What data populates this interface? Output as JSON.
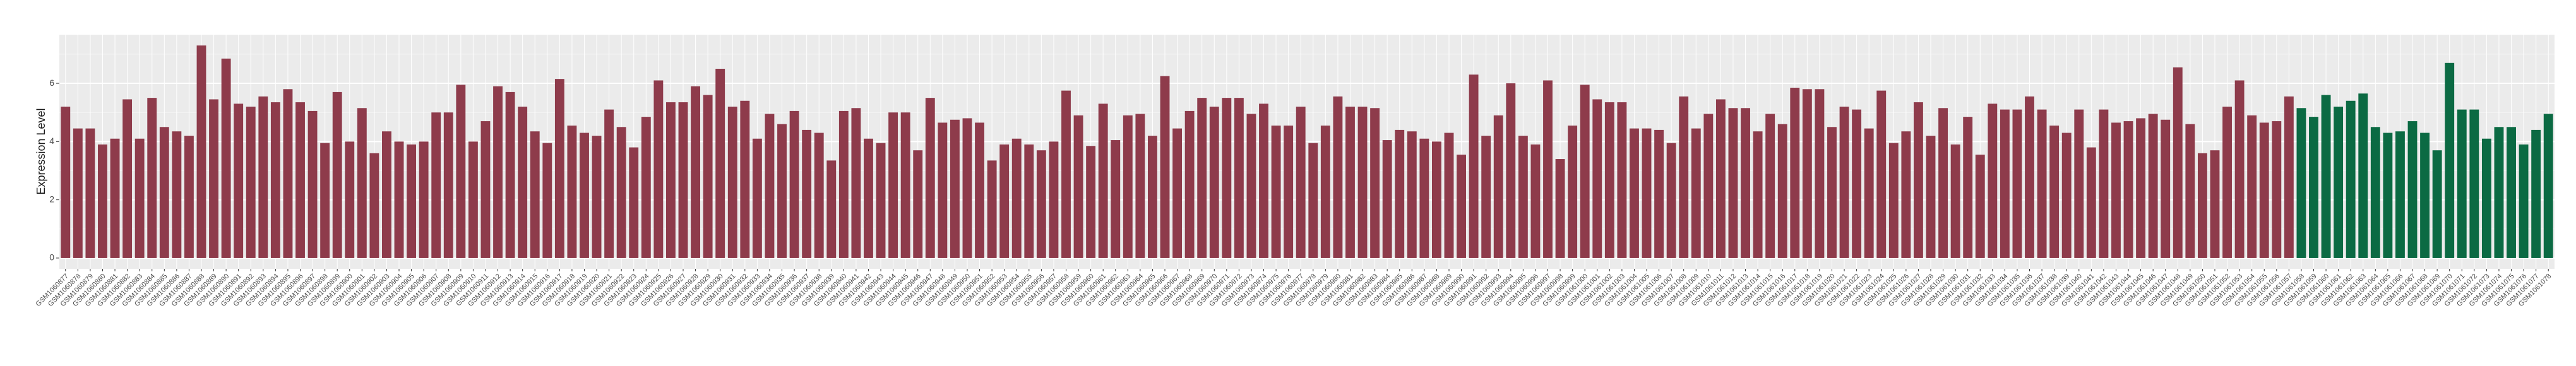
{
  "chart_data": {
    "type": "bar",
    "y_label": "Expression Level",
    "categories": [
      "GSM1060877",
      "GSM1060878",
      "GSM1060879",
      "GSM1060880",
      "GSM1060881",
      "GSM1060882",
      "GSM1060883",
      "GSM1060884",
      "GSM1060885",
      "GSM1060886",
      "GSM1060887",
      "GSM1060888",
      "GSM1060889",
      "GSM1060890",
      "GSM1060891",
      "GSM1060892",
      "GSM1060893",
      "GSM1060894",
      "GSM1060895",
      "GSM1060896",
      "GSM1060897",
      "GSM1060898",
      "GSM1060899",
      "GSM1060900",
      "GSM1060901",
      "GSM1060902",
      "GSM1060903",
      "GSM1060904",
      "GSM1060905",
      "GSM1060906",
      "GSM1060907",
      "GSM1060908",
      "GSM1060909",
      "GSM1060910",
      "GSM1060911",
      "GSM1060912",
      "GSM1060913",
      "GSM1060914",
      "GSM1060915",
      "GSM1060916",
      "GSM1060917",
      "GSM1060918",
      "GSM1060919",
      "GSM1060920",
      "GSM1060921",
      "GSM1060922",
      "GSM1060923",
      "GSM1060924",
      "GSM1060925",
      "GSM1060926",
      "GSM1060927",
      "GSM1060928",
      "GSM1060929",
      "GSM1060930",
      "GSM1060931",
      "GSM1060932",
      "GSM1060933",
      "GSM1060934",
      "GSM1060935",
      "GSM1060936",
      "GSM1060937",
      "GSM1060938",
      "GSM1060939",
      "GSM1060940",
      "GSM1060941",
      "GSM1060942",
      "GSM1060943",
      "GSM1060944",
      "GSM1060945",
      "GSM1060946",
      "GSM1060947",
      "GSM1060948",
      "GSM1060949",
      "GSM1060950",
      "GSM1060951",
      "GSM1060952",
      "GSM1060953",
      "GSM1060954",
      "GSM1060955",
      "GSM1060956",
      "GSM1060957",
      "GSM1060958",
      "GSM1060959",
      "GSM1060960",
      "GSM1060961",
      "GSM1060962",
      "GSM1060963",
      "GSM1060964",
      "GSM1060965",
      "GSM1060966",
      "GSM1060967",
      "GSM1060968",
      "GSM1060969",
      "GSM1060970",
      "GSM1060971",
      "GSM1060972",
      "GSM1060973",
      "GSM1060974",
      "GSM1060975",
      "GSM1060976",
      "GSM1060977",
      "GSM1060978",
      "GSM1060979",
      "GSM1060980",
      "GSM1060981",
      "GSM1060982",
      "GSM1060983",
      "GSM1060984",
      "GSM1060985",
      "GSM1060986",
      "GSM1060987",
      "GSM1060988",
      "GSM1060989",
      "GSM1060990",
      "GSM1060991",
      "GSM1060992",
      "GSM1060993",
      "GSM1060994",
      "GSM1060995",
      "GSM1060996",
      "GSM1060997",
      "GSM1060998",
      "GSM1060999",
      "GSM1061000",
      "GSM1061001",
      "GSM1061002",
      "GSM1061003",
      "GSM1061004",
      "GSM1061005",
      "GSM1061006",
      "GSM1061007",
      "GSM1061008",
      "GSM1061009",
      "GSM1061010",
      "GSM1061011",
      "GSM1061012",
      "GSM1061013",
      "GSM1061014",
      "GSM1061015",
      "GSM1061016",
      "GSM1061017",
      "GSM1061018",
      "GSM1061019",
      "GSM1061020",
      "GSM1061021",
      "GSM1061022",
      "GSM1061023",
      "GSM1061024",
      "GSM1061025",
      "GSM1061026",
      "GSM1061027",
      "GSM1061028",
      "GSM1061029",
      "GSM1061030",
      "GSM1061031",
      "GSM1061032",
      "GSM1061033",
      "GSM1061034",
      "GSM1061035",
      "GSM1061036",
      "GSM1061037",
      "GSM1061038",
      "GSM1061039",
      "GSM1061040",
      "GSM1061041",
      "GSM1061042",
      "GSM1061043",
      "GSM1061044",
      "GSM1061045",
      "GSM1061046",
      "GSM1061047",
      "GSM1061048",
      "GSM1061049",
      "GSM1061050",
      "GSM1061051",
      "GSM1061052",
      "GSM1061053",
      "GSM1061054",
      "GSM1061055",
      "GSM1061056",
      "GSM1061057",
      "GSM1061058",
      "GSM1061059",
      "GSM1061060",
      "GSM1061061",
      "GSM1061062",
      "GSM1061063",
      "GSM1061064",
      "GSM1061065",
      "GSM1061066",
      "GSM1061067",
      "GSM1061068",
      "GSM1061069",
      "GSM1061070",
      "GSM1061071",
      "GSM1061072",
      "GSM1061073",
      "GSM1061074",
      "GSM1061075",
      "GSM1061076",
      "GSM1061077",
      "GSM1061078"
    ],
    "values": [
      5.2,
      4.45,
      4.45,
      3.9,
      4.1,
      5.45,
      4.1,
      5.5,
      4.5,
      4.35,
      4.2,
      7.3,
      5.45,
      6.85,
      5.3,
      5.2,
      5.55,
      5.35,
      5.8,
      5.35,
      5.05,
      3.95,
      5.7,
      4.0,
      5.15,
      3.6,
      4.35,
      4.0,
      3.9,
      4.0,
      5.0,
      5.0,
      5.95,
      4.0,
      4.7,
      5.9,
      5.7,
      5.2,
      4.35,
      3.95,
      6.15,
      4.55,
      4.3,
      4.2,
      5.1,
      4.5,
      3.8,
      4.85,
      6.1,
      5.35,
      5.35,
      5.9,
      5.6,
      6.5,
      5.2,
      5.4,
      4.1,
      4.95,
      4.6,
      5.05,
      4.4,
      4.3,
      3.35,
      5.05,
      5.15,
      4.1,
      3.95,
      5.0,
      5.0,
      3.7,
      5.5,
      4.65,
      4.75,
      4.8,
      4.65,
      3.35,
      3.9,
      4.1,
      3.9,
      3.7,
      4.0,
      5.75,
      4.9,
      3.85,
      5.3,
      4.05,
      4.9,
      4.95,
      4.2,
      6.25,
      4.45,
      5.05,
      5.5,
      5.2,
      5.5,
      5.5,
      4.95,
      5.3,
      4.55,
      4.55,
      5.2,
      3.95,
      4.55,
      5.55,
      5.2,
      5.2,
      5.15,
      4.05,
      4.4,
      4.35,
      4.1,
      4.0,
      4.3,
      3.55,
      6.3,
      4.2,
      4.9,
      6.0,
      4.2,
      3.9,
      6.1,
      3.4,
      4.55,
      5.95,
      5.45,
      5.35,
      5.35,
      4.45,
      4.45,
      4.4,
      3.95,
      5.55,
      4.45,
      4.95,
      5.45,
      5.15,
      5.15,
      4.35,
      4.95,
      4.6,
      5.85,
      5.8,
      5.8,
      4.5,
      5.2,
      5.1,
      4.45,
      5.75,
      3.95,
      4.35,
      5.35,
      4.2,
      5.15,
      3.9,
      4.85,
      3.55,
      5.3,
      5.1,
      5.1,
      5.55,
      5.1,
      4.55,
      4.3,
      5.1,
      3.8,
      5.1,
      4.65,
      4.7,
      4.8,
      4.95,
      4.75,
      6.55,
      4.6,
      3.6,
      3.7,
      5.2,
      6.1,
      4.9,
      4.65,
      4.7,
      5.55,
      5.15,
      4.85,
      5.6,
      5.2,
      5.4,
      5.65,
      4.5,
      4.3,
      4.35,
      4.7,
      4.3,
      3.7,
      6.7,
      5.1,
      5.1,
      4.1,
      4.5,
      4.5,
      3.9,
      4.4,
      4.95
    ],
    "colors": [
      "#8e3b4b",
      "#8e3b4b",
      "#8e3b4b",
      "#8e3b4b",
      "#8e3b4b",
      "#8e3b4b",
      "#8e3b4b",
      "#8e3b4b",
      "#8e3b4b",
      "#8e3b4b",
      "#8e3b4b",
      "#8e3b4b",
      "#8e3b4b",
      "#8e3b4b",
      "#8e3b4b",
      "#8e3b4b",
      "#8e3b4b",
      "#8e3b4b",
      "#8e3b4b",
      "#8e3b4b",
      "#8e3b4b",
      "#8e3b4b",
      "#8e3b4b",
      "#8e3b4b",
      "#8e3b4b",
      "#8e3b4b",
      "#8e3b4b",
      "#8e3b4b",
      "#8e3b4b",
      "#8e3b4b",
      "#8e3b4b",
      "#8e3b4b",
      "#8e3b4b",
      "#8e3b4b",
      "#8e3b4b",
      "#8e3b4b",
      "#8e3b4b",
      "#8e3b4b",
      "#8e3b4b",
      "#8e3b4b",
      "#8e3b4b",
      "#8e3b4b",
      "#8e3b4b",
      "#8e3b4b",
      "#8e3b4b",
      "#8e3b4b",
      "#8e3b4b",
      "#8e3b4b",
      "#8e3b4b",
      "#8e3b4b",
      "#8e3b4b",
      "#8e3b4b",
      "#8e3b4b",
      "#8e3b4b",
      "#8e3b4b",
      "#8e3b4b",
      "#8e3b4b",
      "#8e3b4b",
      "#8e3b4b",
      "#8e3b4b",
      "#8e3b4b",
      "#8e3b4b",
      "#8e3b4b",
      "#8e3b4b",
      "#8e3b4b",
      "#8e3b4b",
      "#8e3b4b",
      "#8e3b4b",
      "#8e3b4b",
      "#8e3b4b",
      "#8e3b4b",
      "#8e3b4b",
      "#8e3b4b",
      "#8e3b4b",
      "#8e3b4b",
      "#8e3b4b",
      "#8e3b4b",
      "#8e3b4b",
      "#8e3b4b",
      "#8e3b4b",
      "#8e3b4b",
      "#8e3b4b",
      "#8e3b4b",
      "#8e3b4b",
      "#8e3b4b",
      "#8e3b4b",
      "#8e3b4b",
      "#8e3b4b",
      "#8e3b4b",
      "#8e3b4b",
      "#8e3b4b",
      "#8e3b4b",
      "#8e3b4b",
      "#8e3b4b",
      "#8e3b4b",
      "#8e3b4b",
      "#8e3b4b",
      "#8e3b4b",
      "#8e3b4b",
      "#8e3b4b",
      "#8e3b4b",
      "#8e3b4b",
      "#8e3b4b",
      "#8e3b4b",
      "#8e3b4b",
      "#8e3b4b",
      "#8e3b4b",
      "#8e3b4b",
      "#8e3b4b",
      "#8e3b4b",
      "#8e3b4b",
      "#8e3b4b",
      "#8e3b4b",
      "#8e3b4b",
      "#8e3b4b",
      "#8e3b4b",
      "#8e3b4b",
      "#8e3b4b",
      "#8e3b4b",
      "#8e3b4b",
      "#8e3b4b",
      "#8e3b4b",
      "#8e3b4b",
      "#8e3b4b",
      "#8e3b4b",
      "#8e3b4b",
      "#8e3b4b",
      "#8e3b4b",
      "#8e3b4b",
      "#8e3b4b",
      "#8e3b4b",
      "#8e3b4b",
      "#8e3b4b",
      "#8e3b4b",
      "#8e3b4b",
      "#8e3b4b",
      "#8e3b4b",
      "#8e3b4b",
      "#8e3b4b",
      "#8e3b4b",
      "#8e3b4b",
      "#8e3b4b",
      "#8e3b4b",
      "#8e3b4b",
      "#8e3b4b",
      "#8e3b4b",
      "#8e3b4b",
      "#8e3b4b",
      "#8e3b4b",
      "#8e3b4b",
      "#8e3b4b",
      "#8e3b4b",
      "#8e3b4b",
      "#8e3b4b",
      "#8e3b4b",
      "#8e3b4b",
      "#8e3b4b",
      "#8e3b4b",
      "#8e3b4b",
      "#8e3b4b",
      "#8e3b4b",
      "#8e3b4b",
      "#8e3b4b",
      "#8e3b4b",
      "#8e3b4b",
      "#8e3b4b",
      "#8e3b4b",
      "#8e3b4b",
      "#8e3b4b",
      "#8e3b4b",
      "#8e3b4b",
      "#8e3b4b",
      "#8e3b4b",
      "#8e3b4b",
      "#8e3b4b",
      "#8e3b4b",
      "#8e3b4b",
      "#8e3b4b",
      "#8e3b4b",
      "#8e3b4b",
      "#8e3b4b",
      "#0b6a43",
      "#0b6a43",
      "#0b6a43",
      "#0b6a43",
      "#0b6a43",
      "#0b6a43",
      "#0b6a43",
      "#0b6a43",
      "#0b6a43",
      "#0b6a43",
      "#0b6a43",
      "#0b6a43",
      "#0b6a43",
      "#0b6a43",
      "#0b6a43",
      "#0b6a43",
      "#0b6a43",
      "#0b6a43",
      "#0b6a43",
      "#0b6a43",
      "#0b6a43"
    ],
    "ylim": [
      -0.37,
      7.67
    ],
    "yticks": [
      0,
      2,
      4,
      6
    ],
    "minor_yticks": [
      1,
      3,
      5,
      7
    ],
    "grid": true
  }
}
